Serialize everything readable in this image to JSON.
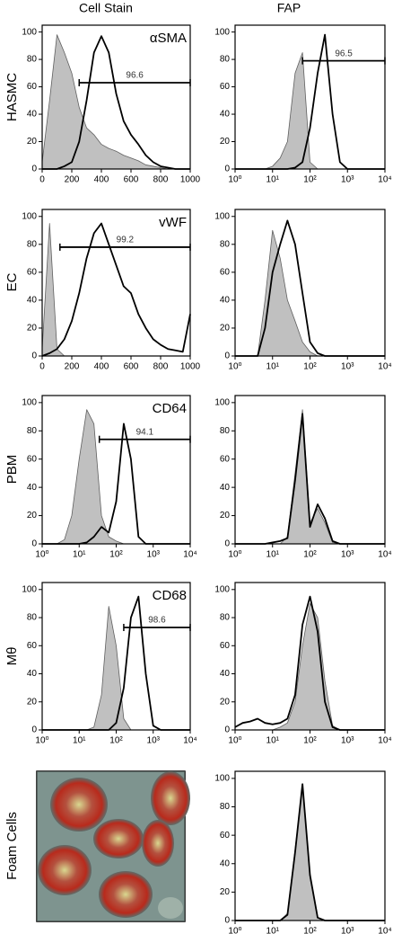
{
  "column_headers": [
    "Cell Stain",
    "FAP"
  ],
  "row_labels": [
    "HASMC",
    "EC",
    "PBM",
    "Mθ",
    "Foam Cells"
  ],
  "chart_data": [
    {
      "type": "line",
      "title": "αSMA",
      "xscale": "linear",
      "x": [
        0,
        50,
        100,
        150,
        200,
        250,
        300,
        350,
        400,
        450,
        500,
        550,
        600,
        650,
        700,
        750,
        800,
        850,
        900,
        950,
        1000
      ],
      "xlim": [
        0,
        1000
      ],
      "xticks": [
        0,
        200,
        400,
        600,
        800,
        1000
      ],
      "ylim": [
        0,
        105
      ],
      "yticks": [
        0,
        20,
        40,
        60,
        80,
        100
      ],
      "series": [
        {
          "color": "#606060",
          "fill": "#c0c0c0",
          "values": [
            5,
            50,
            98,
            85,
            70,
            45,
            30,
            25,
            18,
            15,
            13,
            10,
            8,
            6,
            3,
            2,
            1,
            0,
            0,
            0,
            0
          ]
        },
        {
          "color": "#000000",
          "values": [
            0,
            0,
            0,
            2,
            5,
            20,
            50,
            85,
            97,
            85,
            55,
            35,
            25,
            18,
            10,
            5,
            2,
            1,
            0,
            0,
            0
          ]
        }
      ],
      "gate": {
        "label": 96.6,
        "x": [
          250,
          1000
        ],
        "y": 63
      }
    },
    {
      "type": "line",
      "xscale": "log",
      "x": [
        1,
        1.6,
        2.5,
        4,
        6.3,
        10,
        16,
        25,
        40,
        63,
        100,
        160,
        250,
        400,
        630,
        1000,
        1600,
        2500,
        4000,
        6300,
        10000
      ],
      "xlim": [
        1,
        10000
      ],
      "xticks": [
        {
          "value": 1,
          "label": "10⁰"
        },
        {
          "value": 10,
          "label": "10¹"
        },
        {
          "value": 100,
          "label": "10²"
        },
        {
          "value": 1000,
          "label": "10³"
        },
        {
          "value": 10000,
          "label": "10⁴"
        }
      ],
      "ylim": [
        0,
        105
      ],
      "yticks": [
        0,
        20,
        40,
        60,
        80,
        100
      ],
      "series": [
        {
          "color": "#606060",
          "fill": "#c0c0c0",
          "values": [
            0,
            0,
            0,
            0,
            0,
            2,
            8,
            20,
            70,
            85,
            5,
            0,
            0,
            0,
            0,
            0,
            0,
            0,
            0,
            0,
            0
          ]
        },
        {
          "color": "#000000",
          "values": [
            0,
            0,
            0,
            0,
            0,
            0,
            0,
            0,
            1,
            5,
            30,
            70,
            98,
            40,
            5,
            0,
            0,
            0,
            0,
            0,
            0
          ]
        }
      ],
      "gate": {
        "label": 96.5,
        "x": [
          63,
          10000
        ],
        "y": 79
      }
    },
    {
      "type": "line",
      "title": "vWF",
      "xscale": "linear",
      "x": [
        0,
        50,
        100,
        150,
        200,
        250,
        300,
        350,
        400,
        450,
        500,
        550,
        600,
        650,
        700,
        750,
        800,
        850,
        900,
        950,
        1000
      ],
      "xlim": [
        0,
        1000
      ],
      "xticks": [
        0,
        200,
        400,
        600,
        800,
        1000
      ],
      "ylim": [
        0,
        105
      ],
      "yticks": [
        0,
        20,
        40,
        60,
        80,
        100
      ],
      "series": [
        {
          "color": "#606060",
          "fill": "#c0c0c0",
          "values": [
            5,
            95,
            5,
            0,
            0,
            0,
            0,
            0,
            0,
            0,
            0,
            0,
            0,
            0,
            0,
            0,
            0,
            0,
            0,
            0,
            0
          ]
        },
        {
          "color": "#000000",
          "values": [
            0,
            2,
            5,
            12,
            25,
            45,
            70,
            88,
            95,
            80,
            65,
            50,
            45,
            30,
            20,
            12,
            8,
            5,
            4,
            3,
            30
          ]
        }
      ],
      "gate": {
        "label": 99.2,
        "x": [
          120,
          1000
        ],
        "y": 78
      }
    },
    {
      "type": "line",
      "xscale": "log",
      "x": [
        1,
        1.6,
        2.5,
        4,
        6.3,
        10,
        16,
        25,
        40,
        63,
        100,
        160,
        250,
        400,
        630,
        1000,
        1600,
        2500,
        4000,
        6300,
        10000
      ],
      "xlim": [
        1,
        10000
      ],
      "xticks": [
        {
          "value": 1,
          "label": "10⁰"
        },
        {
          "value": 10,
          "label": "10¹"
        },
        {
          "value": 100,
          "label": "10²"
        },
        {
          "value": 1000,
          "label": "10³"
        },
        {
          "value": 10000,
          "label": "10⁴"
        }
      ],
      "ylim": [
        0,
        105
      ],
      "yticks": [
        0,
        20,
        40,
        60,
        80,
        100
      ],
      "series": [
        {
          "color": "#606060",
          "fill": "#c0c0c0",
          "values": [
            0,
            0,
            0,
            0,
            40,
            90,
            70,
            40,
            25,
            10,
            3,
            0,
            0,
            0,
            0,
            0,
            0,
            0,
            0,
            0,
            0
          ]
        },
        {
          "color": "#000000",
          "values": [
            0,
            0,
            0,
            0,
            20,
            60,
            80,
            97,
            80,
            45,
            10,
            2,
            0,
            0,
            0,
            0,
            0,
            0,
            0,
            0,
            0
          ]
        }
      ]
    },
    {
      "type": "line",
      "title": "CD64",
      "xscale": "log",
      "x": [
        1,
        1.6,
        2.5,
        4,
        6.3,
        10,
        16,
        25,
        40,
        63,
        100,
        160,
        250,
        400,
        630,
        1000,
        1600,
        2500,
        4000,
        6300,
        10000
      ],
      "xlim": [
        1,
        10000
      ],
      "xticks": [
        {
          "value": 1,
          "label": "10⁰"
        },
        {
          "value": 10,
          "label": "10¹"
        },
        {
          "value": 100,
          "label": "10²"
        },
        {
          "value": 1000,
          "label": "10³"
        },
        {
          "value": 10000,
          "label": "10⁴"
        }
      ],
      "ylim": [
        0,
        105
      ],
      "yticks": [
        0,
        20,
        40,
        60,
        80,
        100
      ],
      "series": [
        {
          "color": "#606060",
          "fill": "#c0c0c0",
          "values": [
            0,
            0,
            0,
            3,
            20,
            60,
            95,
            85,
            20,
            5,
            2,
            0,
            0,
            0,
            0,
            0,
            0,
            0,
            0,
            0,
            0
          ]
        },
        {
          "color": "#000000",
          "values": [
            0,
            0,
            0,
            0,
            0,
            0,
            1,
            5,
            12,
            8,
            30,
            85,
            60,
            5,
            0,
            0,
            0,
            0,
            0,
            0,
            0
          ]
        }
      ],
      "gate": {
        "label": 94.1,
        "x": [
          35,
          10000
        ],
        "y": 74
      }
    },
    {
      "type": "line",
      "xscale": "log",
      "x": [
        1,
        1.6,
        2.5,
        4,
        6.3,
        10,
        16,
        25,
        40,
        63,
        100,
        160,
        250,
        400,
        630,
        1000,
        1600,
        2500,
        4000,
        6300,
        10000
      ],
      "xlim": [
        1,
        10000
      ],
      "xticks": [
        {
          "value": 1,
          "label": "10⁰"
        },
        {
          "value": 10,
          "label": "10¹"
        },
        {
          "value": 100,
          "label": "10²"
        },
        {
          "value": 1000,
          "label": "10³"
        },
        {
          "value": 10000,
          "label": "10⁴"
        }
      ],
      "ylim": [
        0,
        105
      ],
      "yticks": [
        0,
        20,
        40,
        60,
        80,
        100
      ],
      "series": [
        {
          "color": "#606060",
          "fill": "#c0c0c0",
          "values": [
            0,
            0,
            0,
            0,
            0,
            0,
            0,
            5,
            50,
            95,
            15,
            25,
            15,
            1,
            0,
            0,
            0,
            0,
            0,
            0,
            0
          ]
        },
        {
          "color": "#000000",
          "values": [
            0,
            0,
            0,
            0,
            0,
            1,
            2,
            4,
            45,
            92,
            12,
            28,
            18,
            2,
            0,
            0,
            0,
            0,
            0,
            0,
            0
          ]
        }
      ]
    },
    {
      "type": "line",
      "title": "CD68",
      "xscale": "log",
      "x": [
        1,
        1.6,
        2.5,
        4,
        6.3,
        10,
        16,
        25,
        40,
        63,
        100,
        160,
        250,
        400,
        630,
        1000,
        1600,
        2500,
        4000,
        6300,
        10000
      ],
      "xlim": [
        1,
        10000
      ],
      "xticks": [
        {
          "value": 1,
          "label": "10⁰"
        },
        {
          "value": 10,
          "label": "10¹"
        },
        {
          "value": 100,
          "label": "10²"
        },
        {
          "value": 1000,
          "label": "10³"
        },
        {
          "value": 10000,
          "label": "10⁴"
        }
      ],
      "ylim": [
        0,
        105
      ],
      "yticks": [
        0,
        20,
        40,
        60,
        80,
        100
      ],
      "series": [
        {
          "color": "#606060",
          "fill": "#c0c0c0",
          "values": [
            0,
            0,
            0,
            0,
            0,
            0,
            0,
            2,
            25,
            88,
            60,
            8,
            0,
            0,
            0,
            0,
            0,
            0,
            0,
            0,
            0
          ]
        },
        {
          "color": "#000000",
          "values": [
            0,
            0,
            0,
            0,
            0,
            0,
            0,
            0,
            0,
            0,
            5,
            30,
            80,
            95,
            40,
            3,
            0,
            0,
            0,
            0,
            0
          ]
        }
      ],
      "gate": {
        "label": 98.6,
        "x": [
          160,
          10000
        ],
        "y": 73
      }
    },
    {
      "type": "line",
      "xscale": "log",
      "x": [
        1,
        1.6,
        2.5,
        4,
        6.3,
        10,
        16,
        25,
        40,
        63,
        100,
        160,
        250,
        400,
        630,
        1000,
        1600,
        2500,
        4000,
        6300,
        10000
      ],
      "xlim": [
        1,
        10000
      ],
      "xticks": [
        {
          "value": 1,
          "label": "10⁰"
        },
        {
          "value": 10,
          "label": "10¹"
        },
        {
          "value": 100,
          "label": "10²"
        },
        {
          "value": 1000,
          "label": "10³"
        },
        {
          "value": 10000,
          "label": "10⁴"
        }
      ],
      "ylim": [
        0,
        105
      ],
      "yticks": [
        0,
        20,
        40,
        60,
        80,
        100
      ],
      "series": [
        {
          "color": "#606060",
          "fill": "#c0c0c0",
          "values": [
            0,
            0,
            0,
            0,
            0,
            0,
            2,
            5,
            20,
            60,
            90,
            80,
            35,
            3,
            0,
            0,
            0,
            0,
            0,
            0,
            0
          ]
        },
        {
          "color": "#000000",
          "values": [
            2,
            5,
            6,
            8,
            5,
            4,
            5,
            8,
            25,
            75,
            95,
            70,
            20,
            2,
            0,
            0,
            0,
            0,
            0,
            0,
            0
          ]
        }
      ]
    },
    {
      "type": "line",
      "xscale": "log",
      "x": [
        1,
        1.6,
        2.5,
        4,
        6.3,
        10,
        16,
        25,
        40,
        63,
        100,
        160,
        250,
        400,
        630,
        1000,
        1600,
        2500,
        4000,
        6300,
        10000
      ],
      "xlim": [
        1,
        10000
      ],
      "xticks": [
        {
          "value": 1,
          "label": "10⁰"
        },
        {
          "value": 10,
          "label": "10¹"
        },
        {
          "value": 100,
          "label": "10²"
        },
        {
          "value": 1000,
          "label": "10³"
        },
        {
          "value": 10000,
          "label": "10⁴"
        }
      ],
      "ylim": [
        0,
        105
      ],
      "yticks": [
        0,
        20,
        40,
        60,
        80,
        100
      ],
      "series": [
        {
          "color": "#606060",
          "fill": "#c0c0c0",
          "values": [
            0,
            0,
            0,
            0,
            0,
            0,
            0,
            5,
            50,
            95,
            30,
            2,
            0,
            0,
            0,
            0,
            0,
            0,
            0,
            0,
            0
          ]
        },
        {
          "color": "#000000",
          "values": [
            0,
            0,
            0,
            0,
            0,
            0,
            0,
            4,
            48,
            96,
            32,
            2,
            0,
            0,
            0,
            0,
            0,
            0,
            0,
            0,
            0
          ]
        }
      ]
    }
  ]
}
